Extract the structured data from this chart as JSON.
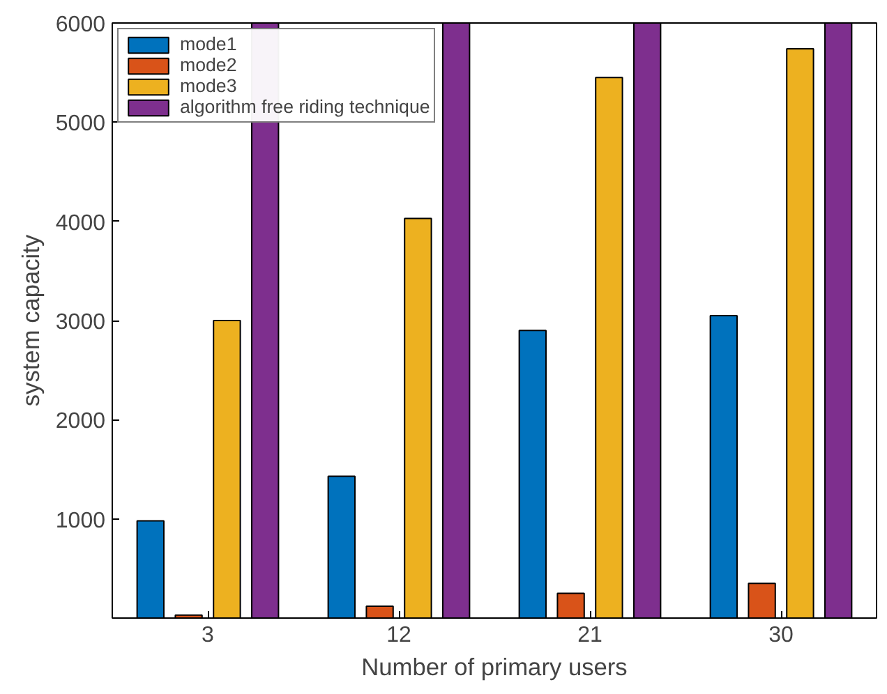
{
  "chart_data": {
    "type": "bar",
    "xlabel": "Number of primary users",
    "ylabel": "system capacity",
    "categories": [
      "3",
      "12",
      "21",
      "30"
    ],
    "series": [
      {
        "name": "mode1",
        "color": "#0072bd",
        "values": [
          980,
          1430,
          2900,
          3050
        ]
      },
      {
        "name": "mode2",
        "color": "#d95319",
        "values": [
          30,
          120,
          250,
          350
        ]
      },
      {
        "name": "mode3",
        "color": "#edb120",
        "values": [
          3000,
          4030,
          5450,
          5740
        ]
      },
      {
        "name": "algorithm free riding technique",
        "color": "#7e2f8e",
        "values": [
          6000,
          6000,
          6000,
          6000
        ]
      }
    ],
    "ylim": [
      0,
      6000
    ],
    "yticks": [
      1000,
      2000,
      3000,
      4000,
      5000,
      6000
    ],
    "grid": false,
    "legend": "top left"
  }
}
